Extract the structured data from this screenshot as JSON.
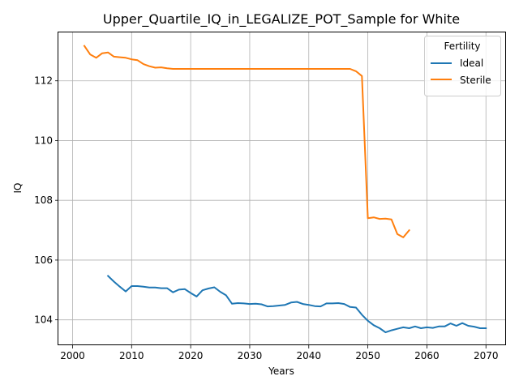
{
  "chart_data": {
    "type": "line",
    "title": "Upper_Quartile_IQ_in_LEGALIZE_POT_Sample for White",
    "xlabel": "Years",
    "ylabel": "IQ",
    "xlim": [
      1997.6,
      2073.4
    ],
    "ylim": [
      103.15,
      113.62
    ],
    "xticks": [
      2000,
      2010,
      2020,
      2030,
      2040,
      2050,
      2060,
      2070
    ],
    "yticks": [
      104,
      106,
      108,
      110,
      112
    ],
    "grid": true,
    "legend": {
      "title": "Fertility",
      "placement": "top-right"
    },
    "series": [
      {
        "name": "Ideal",
        "color": "#1f77b4",
        "x": [
          2006,
          2007,
          2008,
          2009,
          2010,
          2011,
          2012,
          2013,
          2014,
          2015,
          2016,
          2017,
          2018,
          2019,
          2020,
          2021,
          2022,
          2023,
          2024,
          2025,
          2026,
          2027,
          2028,
          2029,
          2030,
          2031,
          2032,
          2033,
          2034,
          2035,
          2036,
          2037,
          2038,
          2039,
          2040,
          2041,
          2042,
          2043,
          2044,
          2045,
          2046,
          2047,
          2048,
          2049,
          2050,
          2051,
          2052,
          2053,
          2054,
          2055,
          2056,
          2057,
          2058,
          2059,
          2060,
          2061,
          2062,
          2063,
          2064,
          2065,
          2066,
          2067,
          2068,
          2069,
          2070
        ],
        "y": [
          105.47,
          105.28,
          105.11,
          104.95,
          105.13,
          105.13,
          105.11,
          105.08,
          105.08,
          105.06,
          105.06,
          104.92,
          105.01,
          105.03,
          104.9,
          104.78,
          104.99,
          105.05,
          105.09,
          104.94,
          104.82,
          104.54,
          104.56,
          104.55,
          104.53,
          104.54,
          104.52,
          104.45,
          104.46,
          104.48,
          104.5,
          104.58,
          104.6,
          104.53,
          104.5,
          104.46,
          104.45,
          104.55,
          104.55,
          104.56,
          104.53,
          104.43,
          104.41,
          104.17,
          103.97,
          103.82,
          103.72,
          103.58,
          103.65,
          103.7,
          103.75,
          103.72,
          103.78,
          103.72,
          103.75,
          103.73,
          103.78,
          103.78,
          103.88,
          103.8,
          103.89,
          103.8,
          103.77,
          103.72,
          103.72
        ]
      },
      {
        "name": "Sterile",
        "color": "#ff7f0e",
        "x": [
          2002,
          2003,
          2004,
          2005,
          2006,
          2007,
          2008,
          2009,
          2010,
          2011,
          2012,
          2013,
          2014,
          2015,
          2016,
          2017,
          2018,
          2019,
          2020,
          2021,
          2022,
          2023,
          2024,
          2025,
          2026,
          2027,
          2028,
          2029,
          2030,
          2031,
          2032,
          2033,
          2034,
          2035,
          2036,
          2037,
          2038,
          2039,
          2040,
          2041,
          2042,
          2043,
          2044,
          2045,
          2046,
          2047,
          2048,
          2049,
          2050,
          2051,
          2052,
          2053,
          2054,
          2055,
          2056,
          2057
        ],
        "y": [
          113.17,
          112.88,
          112.77,
          112.92,
          112.95,
          112.81,
          112.79,
          112.77,
          112.72,
          112.69,
          112.56,
          112.49,
          112.44,
          112.45,
          112.42,
          112.4,
          112.4,
          112.4,
          112.4,
          112.4,
          112.4,
          112.4,
          112.4,
          112.4,
          112.4,
          112.4,
          112.4,
          112.4,
          112.4,
          112.4,
          112.4,
          112.4,
          112.4,
          112.4,
          112.4,
          112.4,
          112.4,
          112.4,
          112.4,
          112.4,
          112.4,
          112.4,
          112.4,
          112.4,
          112.4,
          112.4,
          112.32,
          112.16,
          107.4,
          107.43,
          107.38,
          107.39,
          107.36,
          106.87,
          106.76,
          107.0
        ]
      }
    ]
  }
}
